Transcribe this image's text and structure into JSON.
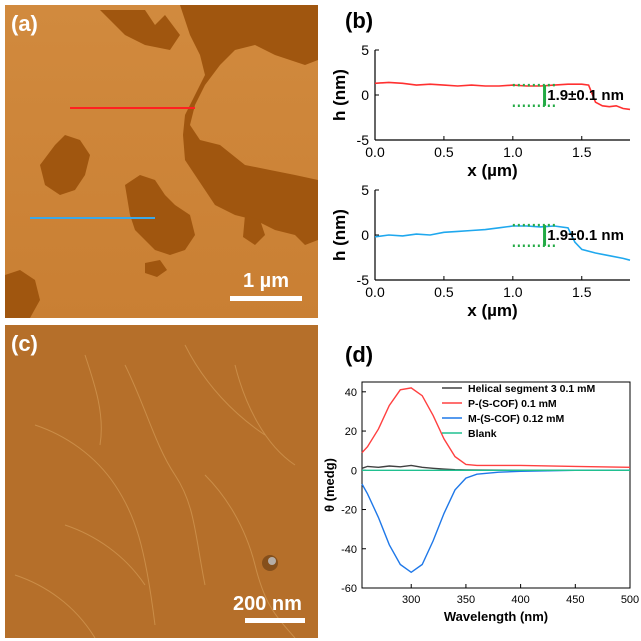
{
  "panels": {
    "a": {
      "label": "(a)",
      "scale_label": "1 µm"
    },
    "b": {
      "label": "(b)"
    },
    "c": {
      "label": "(c)",
      "scale_label": "200 nm"
    },
    "d": {
      "label": "(d)"
    }
  },
  "chart_data": [
    {
      "type": "line",
      "title": "",
      "xlabel": "x (µm)",
      "ylabel": "h (nm)",
      "xlim": [
        0,
        1.85
      ],
      "ylim": [
        -5,
        5
      ],
      "xticks": [
        "0.0",
        "0.5",
        "1.0",
        "1.5"
      ],
      "yticks": [
        "5",
        "0",
        "-5"
      ],
      "annotation": "1.9±0.1 nm",
      "color": "#ff3030",
      "series": [
        {
          "name": "red profile",
          "x": [
            0,
            0.1,
            0.2,
            0.3,
            0.4,
            0.5,
            0.6,
            0.7,
            0.8,
            0.9,
            1.0,
            1.1,
            1.2,
            1.3,
            1.4,
            1.5,
            1.55,
            1.6,
            1.65,
            1.7,
            1.75,
            1.8,
            1.85
          ],
          "y": [
            1.3,
            1.4,
            1.3,
            1.1,
            1.2,
            1.1,
            1.0,
            1.1,
            1.0,
            1.0,
            1.1,
            1.0,
            1.0,
            1.1,
            1.2,
            1.2,
            1.1,
            -0.8,
            -1.2,
            -1.3,
            -1.2,
            -1.5,
            -1.6
          ]
        }
      ]
    },
    {
      "type": "line",
      "title": "",
      "xlabel": "x (µm)",
      "ylabel": "h (nm)",
      "xlim": [
        0,
        1.85
      ],
      "ylim": [
        -5,
        5
      ],
      "xticks": [
        "0.0",
        "0.5",
        "1.0",
        "1.5"
      ],
      "yticks": [
        "5",
        "0",
        "-5"
      ],
      "annotation": "1.9±0.1 nm",
      "color": "#1fa8ee",
      "series": [
        {
          "name": "blue profile",
          "x": [
            0,
            0.1,
            0.2,
            0.3,
            0.4,
            0.5,
            0.6,
            0.7,
            0.8,
            0.9,
            1.0,
            1.1,
            1.2,
            1.3,
            1.4,
            1.45,
            1.5,
            1.6,
            1.7,
            1.8,
            1.85
          ],
          "y": [
            -0.2,
            0.0,
            -0.1,
            0.1,
            0.0,
            0.3,
            0.4,
            0.5,
            0.6,
            0.8,
            1.0,
            1.0,
            0.9,
            1.0,
            0.8,
            -0.8,
            -1.6,
            -2.0,
            -2.3,
            -2.6,
            -2.8
          ]
        }
      ]
    },
    {
      "type": "line",
      "title": "",
      "xlabel": "Wavelength (nm)",
      "ylabel": "θ (medg)",
      "xlim": [
        255,
        500
      ],
      "ylim": [
        -60,
        45
      ],
      "xticks": [
        300,
        350,
        400,
        450,
        500
      ],
      "yticks": [
        40,
        20,
        0,
        -20,
        -40,
        -60
      ],
      "series": [
        {
          "name": "Helical segment 3 0.1 mM",
          "color": "#404040",
          "x": [
            255,
            260,
            270,
            280,
            290,
            300,
            310,
            320,
            330,
            340,
            350,
            370,
            400,
            450,
            500
          ],
          "y": [
            1.0,
            2.0,
            1.5,
            2.2,
            1.8,
            2.5,
            1.5,
            1.0,
            0.6,
            0.3,
            0.2,
            0.1,
            0.0,
            0.0,
            0.0
          ]
        },
        {
          "name": "P-(S-COF) 0.1 mM",
          "color": "#ff4040",
          "x": [
            255,
            260,
            270,
            280,
            290,
            300,
            310,
            320,
            330,
            340,
            350,
            360,
            380,
            400,
            450,
            500
          ],
          "y": [
            9,
            12,
            21,
            33,
            41,
            42,
            38,
            28,
            16,
            7,
            3,
            2.5,
            2.5,
            2.5,
            2.0,
            1.5
          ]
        },
        {
          "name": "M-(S-COF) 0.12 mM",
          "color": "#1f78e8",
          "x": [
            255,
            260,
            270,
            280,
            290,
            300,
            310,
            320,
            330,
            340,
            350,
            360,
            380,
            400,
            450,
            500
          ],
          "y": [
            -7,
            -12,
            -24,
            -38,
            -48,
            -52,
            -48,
            -36,
            -22,
            -10,
            -4,
            -2,
            -1,
            -0.5,
            0,
            0
          ]
        },
        {
          "name": "Blank",
          "color": "#20c090",
          "x": [
            255,
            300,
            350,
            400,
            450,
            500
          ],
          "y": [
            0,
            0,
            0,
            0,
            0,
            0
          ]
        }
      ]
    }
  ],
  "colors": {
    "afm_bg": "#c97f33",
    "afm_dark": "#a1570f",
    "afm_c_bg": "#b56f2a"
  }
}
